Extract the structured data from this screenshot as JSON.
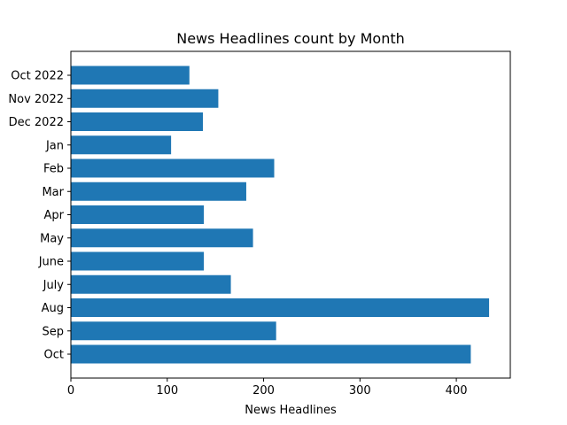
{
  "chart_data": {
    "type": "bar",
    "orientation": "horizontal",
    "title": "News Headlines count by Month",
    "xlabel": "News Headlines",
    "ylabel": "",
    "categories": [
      "Oct 2022",
      "Nov 2022",
      "Dec 2022",
      "Jan",
      "Feb",
      "Mar",
      "Apr",
      "May",
      "June",
      "July",
      "Aug",
      "Sep",
      "Oct"
    ],
    "values": [
      123,
      153,
      137,
      104,
      211,
      182,
      138,
      189,
      138,
      166,
      434,
      213,
      415
    ],
    "xlim": [
      0,
      456
    ],
    "xticks": [
      0,
      100,
      200,
      300,
      400
    ],
    "bar_color": "#1f77b4",
    "grid": false
  }
}
